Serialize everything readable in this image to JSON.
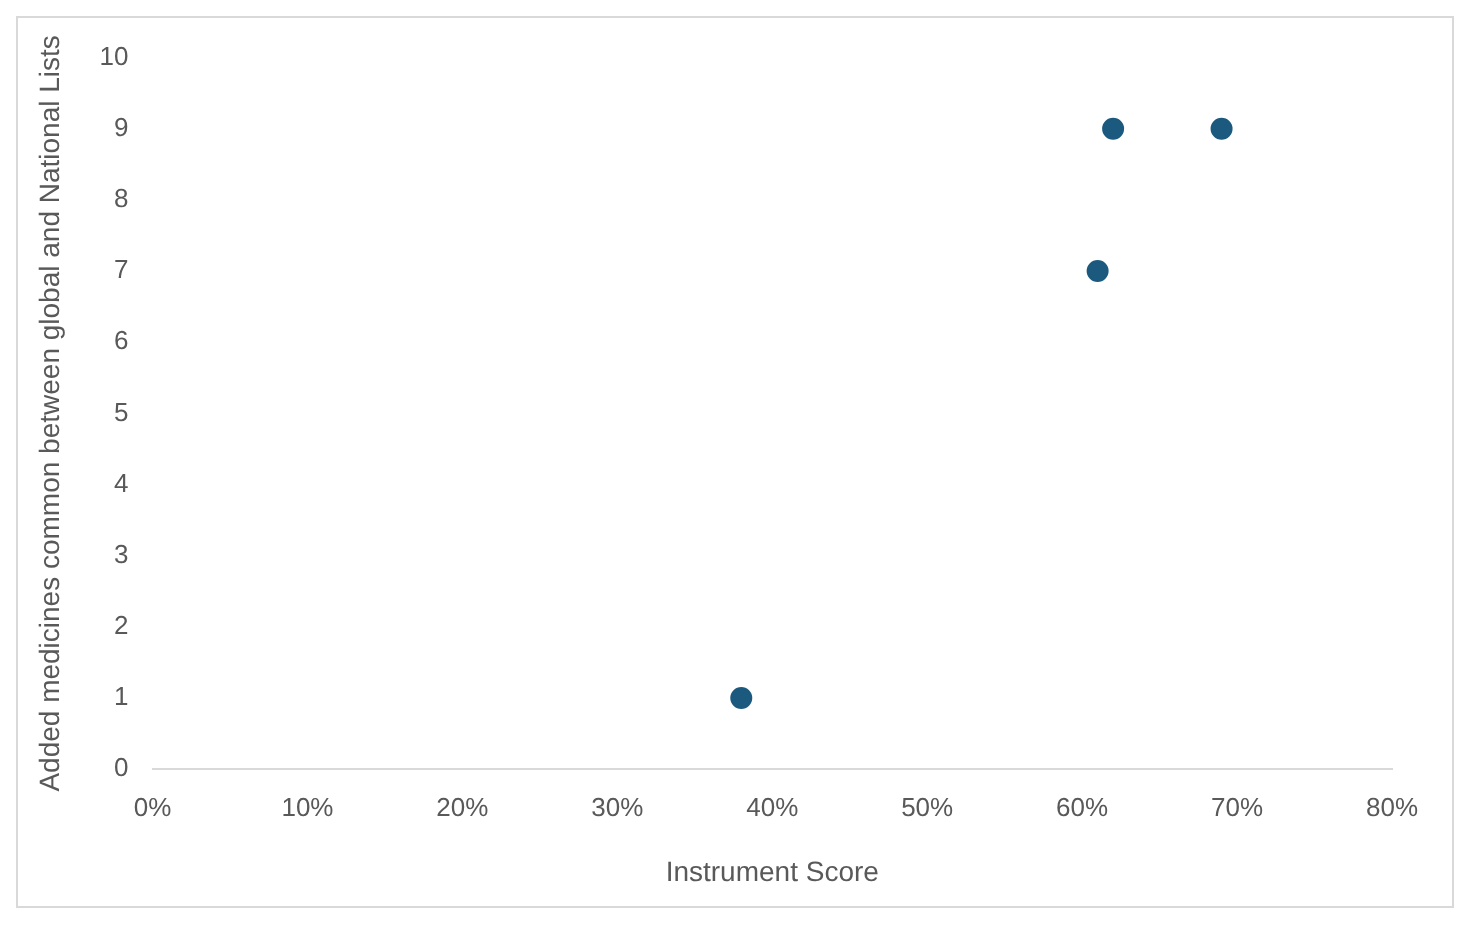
{
  "chart_data": {
    "type": "scatter",
    "xlabel": "Instrument Score",
    "ylabel": "Added medicines common between global and National Lists",
    "x": [
      38,
      61,
      62,
      69
    ],
    "series": [
      {
        "color": "#1b5a7e",
        "values": [
          1,
          7,
          9,
          9
        ]
      }
    ],
    "xlim": [
      0,
      80
    ],
    "xticks": [
      {
        "value": 0,
        "label": "0%"
      },
      {
        "value": 10,
        "label": "10%"
      },
      {
        "value": 20,
        "label": "20%"
      },
      {
        "value": 30,
        "label": "30%"
      },
      {
        "value": 40,
        "label": "40%"
      },
      {
        "value": 50,
        "label": "50%"
      },
      {
        "value": 60,
        "label": "60%"
      },
      {
        "value": 70,
        "label": "70%"
      },
      {
        "value": 80,
        "label": "80%"
      }
    ],
    "ylim": [
      0,
      10
    ],
    "yticks": [
      0,
      1,
      2,
      3,
      4,
      5,
      6,
      7,
      8,
      9,
      10
    ],
    "grid": false,
    "legend": false,
    "marker": "circle"
  }
}
